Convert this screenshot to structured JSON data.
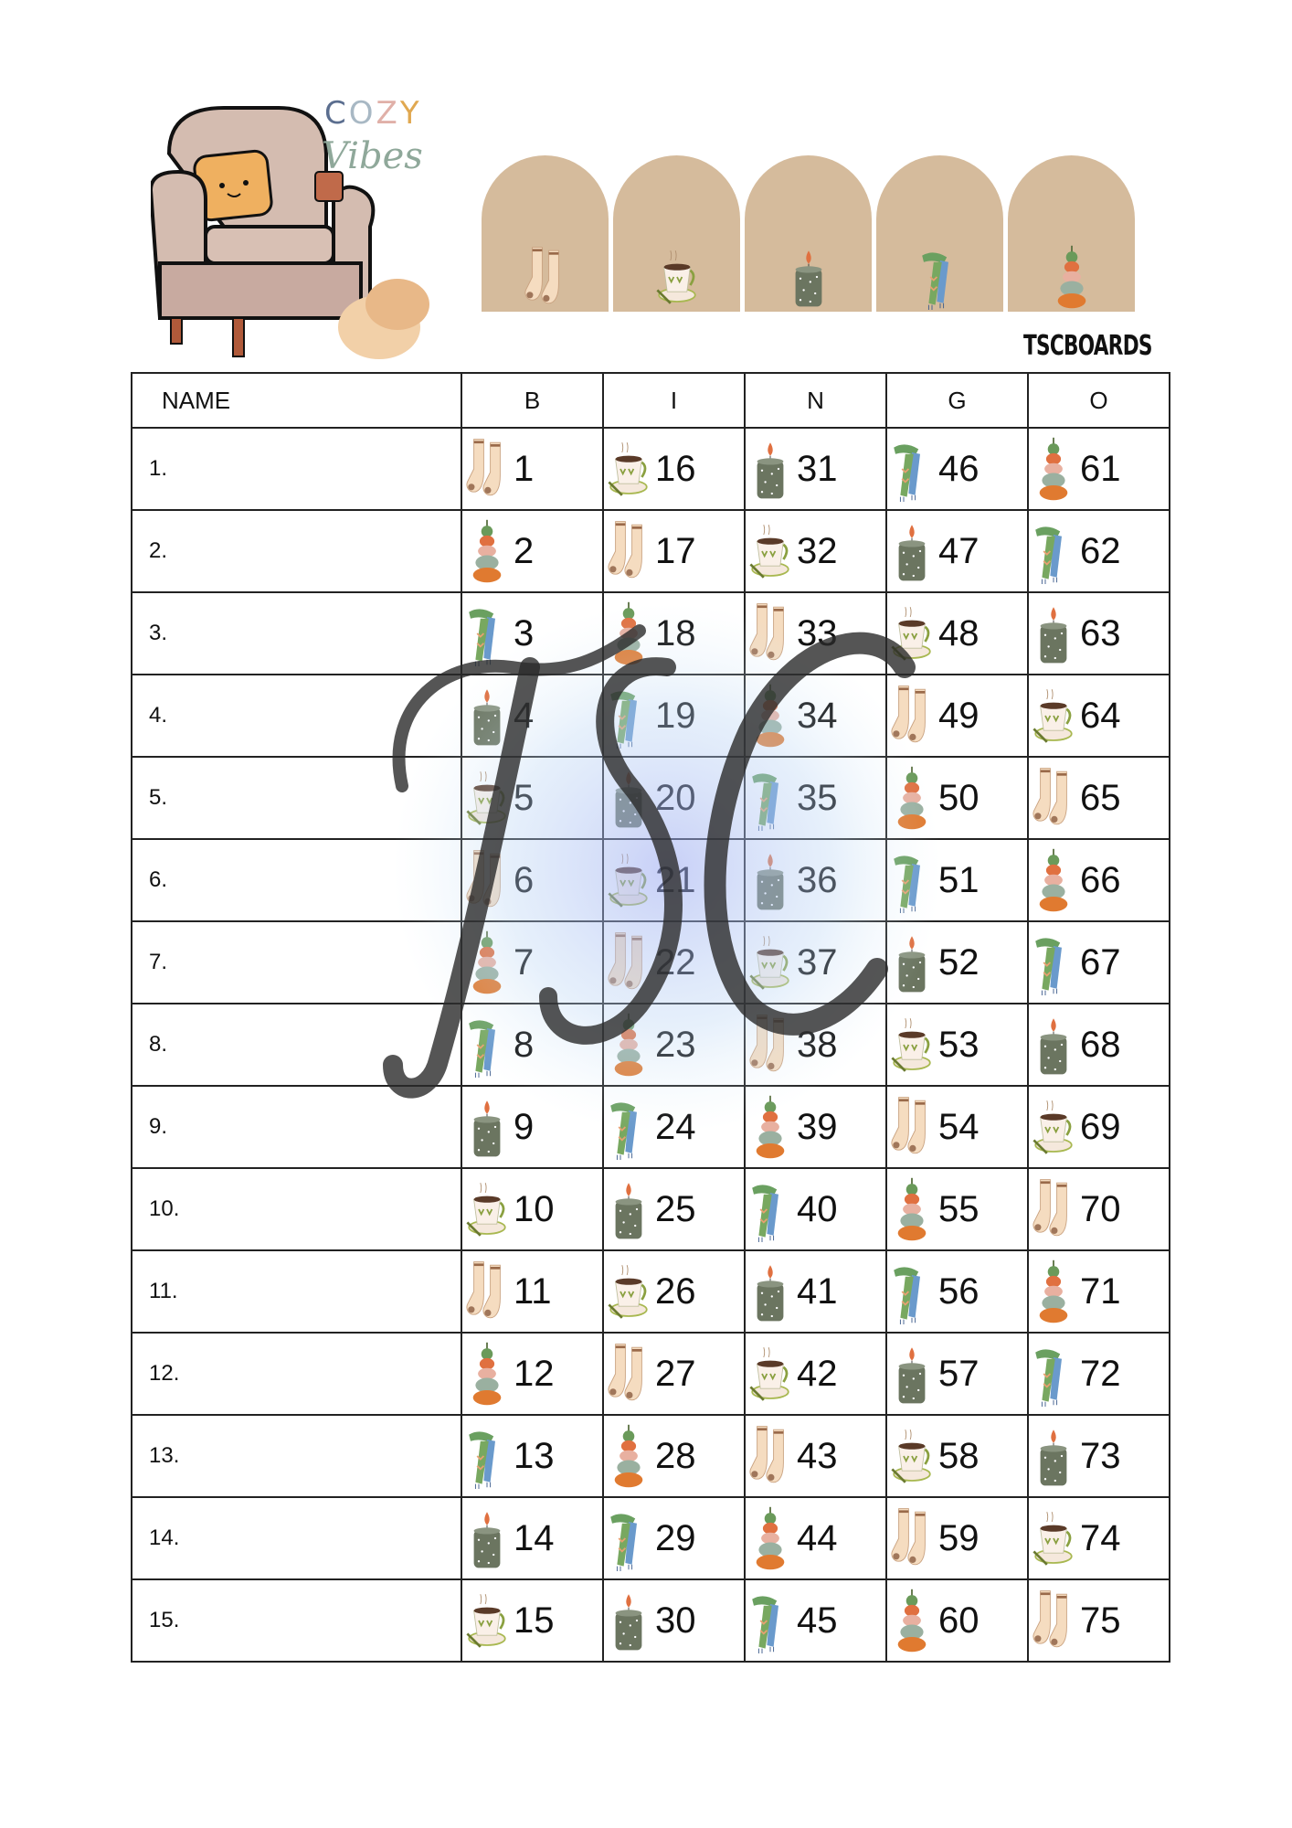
{
  "logo": {
    "cozy_letters": [
      "C",
      "O",
      "Z",
      "Y"
    ],
    "vibes": "Vibes"
  },
  "brand": "TSCBOARDS",
  "header_icons": [
    "sock",
    "cup",
    "candle",
    "scarf",
    "pumpkin"
  ],
  "table": {
    "headers": [
      "NAME",
      "B",
      "I",
      "N",
      "G",
      "O"
    ],
    "rows": [
      {
        "label": "1.",
        "cells": [
          {
            "n": "1",
            "icon": "sock"
          },
          {
            "n": "16",
            "icon": "cup"
          },
          {
            "n": "31",
            "icon": "candle"
          },
          {
            "n": "46",
            "icon": "scarf"
          },
          {
            "n": "61",
            "icon": "pumpkin"
          }
        ]
      },
      {
        "label": "2.",
        "cells": [
          {
            "n": "2",
            "icon": "pumpkin"
          },
          {
            "n": "17",
            "icon": "sock"
          },
          {
            "n": "32",
            "icon": "cup"
          },
          {
            "n": "47",
            "icon": "candle"
          },
          {
            "n": "62",
            "icon": "scarf"
          }
        ]
      },
      {
        "label": "3.",
        "cells": [
          {
            "n": "3",
            "icon": "scarf"
          },
          {
            "n": "18",
            "icon": "pumpkin"
          },
          {
            "n": "33",
            "icon": "sock"
          },
          {
            "n": "48",
            "icon": "cup"
          },
          {
            "n": "63",
            "icon": "candle"
          }
        ]
      },
      {
        "label": "4.",
        "cells": [
          {
            "n": "4",
            "icon": "candle"
          },
          {
            "n": "19",
            "icon": "scarf"
          },
          {
            "n": "34",
            "icon": "pumpkin"
          },
          {
            "n": "49",
            "icon": "sock"
          },
          {
            "n": "64",
            "icon": "cup"
          }
        ]
      },
      {
        "label": "5.",
        "cells": [
          {
            "n": "5",
            "icon": "cup"
          },
          {
            "n": "20",
            "icon": "candle"
          },
          {
            "n": "35",
            "icon": "scarf"
          },
          {
            "n": "50",
            "icon": "pumpkin"
          },
          {
            "n": "65",
            "icon": "sock"
          }
        ]
      },
      {
        "label": "6.",
        "cells": [
          {
            "n": "6",
            "icon": "sock"
          },
          {
            "n": "21",
            "icon": "cup"
          },
          {
            "n": "36",
            "icon": "candle"
          },
          {
            "n": "51",
            "icon": "scarf"
          },
          {
            "n": "66",
            "icon": "pumpkin"
          }
        ]
      },
      {
        "label": "7.",
        "cells": [
          {
            "n": "7",
            "icon": "pumpkin"
          },
          {
            "n": "22",
            "icon": "sock"
          },
          {
            "n": "37",
            "icon": "cup"
          },
          {
            "n": "52",
            "icon": "candle"
          },
          {
            "n": "67",
            "icon": "scarf"
          }
        ]
      },
      {
        "label": "8.",
        "cells": [
          {
            "n": "8",
            "icon": "scarf"
          },
          {
            "n": "23",
            "icon": "pumpkin"
          },
          {
            "n": "38",
            "icon": "sock"
          },
          {
            "n": "53",
            "icon": "cup"
          },
          {
            "n": "68",
            "icon": "candle"
          }
        ]
      },
      {
        "label": "9.",
        "cells": [
          {
            "n": "9",
            "icon": "candle"
          },
          {
            "n": "24",
            "icon": "scarf"
          },
          {
            "n": "39",
            "icon": "pumpkin"
          },
          {
            "n": "54",
            "icon": "sock"
          },
          {
            "n": "69",
            "icon": "cup"
          }
        ]
      },
      {
        "label": "10.",
        "cells": [
          {
            "n": "10",
            "icon": "cup"
          },
          {
            "n": "25",
            "icon": "candle"
          },
          {
            "n": "40",
            "icon": "scarf"
          },
          {
            "n": "55",
            "icon": "pumpkin"
          },
          {
            "n": "70",
            "icon": "sock"
          }
        ]
      },
      {
        "label": "11.",
        "cells": [
          {
            "n": "11",
            "icon": "sock"
          },
          {
            "n": "26",
            "icon": "cup"
          },
          {
            "n": "41",
            "icon": "candle"
          },
          {
            "n": "56",
            "icon": "scarf"
          },
          {
            "n": "71",
            "icon": "pumpkin"
          }
        ]
      },
      {
        "label": "12.",
        "cells": [
          {
            "n": "12",
            "icon": "pumpkin"
          },
          {
            "n": "27",
            "icon": "sock"
          },
          {
            "n": "42",
            "icon": "cup"
          },
          {
            "n": "57",
            "icon": "candle"
          },
          {
            "n": "72",
            "icon": "scarf"
          }
        ]
      },
      {
        "label": "13.",
        "cells": [
          {
            "n": "13",
            "icon": "scarf"
          },
          {
            "n": "28",
            "icon": "pumpkin"
          },
          {
            "n": "43",
            "icon": "sock"
          },
          {
            "n": "58",
            "icon": "cup"
          },
          {
            "n": "73",
            "icon": "candle"
          }
        ]
      },
      {
        "label": "14.",
        "cells": [
          {
            "n": "14",
            "icon": "candle"
          },
          {
            "n": "29",
            "icon": "scarf"
          },
          {
            "n": "44",
            "icon": "pumpkin"
          },
          {
            "n": "59",
            "icon": "sock"
          },
          {
            "n": "74",
            "icon": "cup"
          }
        ]
      },
      {
        "label": "15.",
        "cells": [
          {
            "n": "15",
            "icon": "cup"
          },
          {
            "n": "30",
            "icon": "candle"
          },
          {
            "n": "45",
            "icon": "scarf"
          },
          {
            "n": "60",
            "icon": "pumpkin"
          },
          {
            "n": "75",
            "icon": "sock"
          }
        ]
      }
    ]
  },
  "watermark": "TSC",
  "colors": {
    "arch": "#d5bb9c",
    "watermark": "#2a2a2a",
    "border": "#222222"
  }
}
